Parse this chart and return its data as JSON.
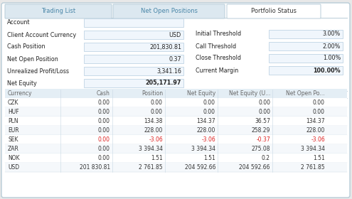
{
  "tabs": [
    "Trading List",
    "Net Open Positions",
    "Portfolio Status"
  ],
  "tab_colors": [
    "#dce8f0",
    "#dce8f0",
    "#ffffff"
  ],
  "tab_text_colors": [
    "#4a86a8",
    "#4a86a8",
    "#333333"
  ],
  "tab_bold": [
    false,
    false,
    false
  ],
  "background": "#e8e8e8",
  "panel_bg": "#ffffff",
  "panel_border": "#b8ccd8",
  "header_bg": "#e4eef5",
  "info_fields": [
    [
      "Account",
      ""
    ],
    [
      "Client Account Currency",
      "USD"
    ],
    [
      "Cash Position",
      "201,830.81"
    ],
    [
      "Net Open Position",
      "0.37"
    ],
    [
      "Unrealized Profit/Loss",
      "3,341.16"
    ],
    [
      "Net Equity",
      "205,171.97"
    ]
  ],
  "threshold_fields": [
    [
      "Initial Threshold",
      "3.00%"
    ],
    [
      "Call Threshold",
      "2.00%"
    ],
    [
      "Close Threshold",
      "1.00%"
    ],
    [
      "Current Margin",
      "100.00%"
    ]
  ],
  "table_headers": [
    "Currency",
    "Cash",
    "Position",
    "Net Equity",
    "Net Equity (U...",
    "Net Open Po..."
  ],
  "table_data": [
    [
      "CZK",
      "0.00",
      "0.00",
      "0.00",
      "0.00",
      "0.00"
    ],
    [
      "HUF",
      "0.00",
      "0.00",
      "0.00",
      "0.00",
      "0.00"
    ],
    [
      "PLN",
      "0.00",
      "134.38",
      "134.37",
      "36.57",
      "134.37"
    ],
    [
      "EUR",
      "0.00",
      "228.00",
      "228.00",
      "258.29",
      "228.00"
    ],
    [
      "SEK",
      "0.00",
      "-3.06",
      "-3.06",
      "-0.37",
      "-3.06"
    ],
    [
      "ZAR",
      "0.00",
      "3 394.34",
      "3 394.34",
      "275.08",
      "3 394.34"
    ],
    [
      "NOK",
      "0.00",
      "1.51",
      "1.51",
      "0.2",
      "1.51"
    ],
    [
      "USD",
      "201 830.81",
      "2 761.85",
      "204 592.66",
      "204 592.66",
      "2 761.85"
    ]
  ],
  "negative_rows": [
    4
  ],
  "negative_color": "#dd2222",
  "normal_text": "#333333",
  "label_color": "#222222",
  "row_alt_color": "#f5f8fb",
  "row_color": "#ffffff",
  "grid_color": "#c8d8e4",
  "header_text_color": "#666666",
  "input_box_bg": "#f0f6fc",
  "input_box_border": "#c0d4e4"
}
